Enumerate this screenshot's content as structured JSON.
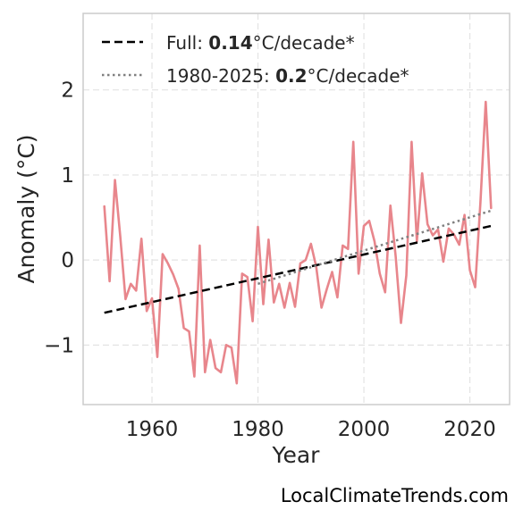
{
  "chart_data": {
    "type": "line",
    "xlabel": "Year",
    "ylabel": "Anomaly (°C)",
    "xlim": [
      1947,
      2027.5
    ],
    "ylim": [
      -1.7,
      2.9
    ],
    "xticks": [
      1960,
      1980,
      2000,
      2020
    ],
    "xtick_labels": [
      "1960",
      "1980",
      "2000",
      "2020"
    ],
    "yticks": [
      -1,
      0,
      1,
      2
    ],
    "ytick_labels": [
      "−1",
      "0",
      "1",
      "2"
    ],
    "grid": true,
    "legend_position": "top-left",
    "series": [
      {
        "style": "solid",
        "color": "#e8868c",
        "x": [
          1951,
          1952,
          1953,
          1954,
          1955,
          1956,
          1957,
          1958,
          1959,
          1960,
          1961,
          1962,
          1963,
          1964,
          1965,
          1966,
          1967,
          1968,
          1969,
          1970,
          1971,
          1972,
          1973,
          1974,
          1975,
          1976,
          1977,
          1978,
          1979,
          1980,
          1981,
          1982,
          1983,
          1984,
          1985,
          1986,
          1987,
          1988,
          1989,
          1990,
          1991,
          1992,
          1993,
          1994,
          1995,
          1996,
          1997,
          1998,
          1999,
          2000,
          2001,
          2002,
          2003,
          2004,
          2005,
          2006,
          2007,
          2008,
          2009,
          2010,
          2011,
          2012,
          2013,
          2014,
          2015,
          2016,
          2017,
          2018,
          2019,
          2020,
          2021,
          2022,
          2023,
          2024
        ],
        "y": [
          0.63,
          -0.25,
          0.94,
          0.28,
          -0.46,
          -0.28,
          -0.36,
          0.25,
          -0.6,
          -0.45,
          -1.14,
          0.07,
          -0.04,
          -0.17,
          -0.34,
          -0.8,
          -0.84,
          -1.37,
          0.17,
          -1.32,
          -0.94,
          -1.27,
          -1.32,
          -1.0,
          -1.03,
          -1.45,
          -0.16,
          -0.2,
          -0.72,
          0.39,
          -0.52,
          0.24,
          -0.5,
          -0.28,
          -0.56,
          -0.27,
          -0.55,
          -0.04,
          0.0,
          0.19,
          -0.08,
          -0.56,
          -0.34,
          -0.14,
          -0.44,
          0.17,
          0.13,
          1.39,
          -0.16,
          0.4,
          0.46,
          0.22,
          -0.16,
          -0.38,
          0.64,
          0.04,
          -0.74,
          -0.18,
          1.39,
          0.22,
          1.02,
          0.42,
          0.29,
          0.36,
          -0.02,
          0.37,
          0.3,
          0.18,
          0.53,
          -0.12,
          -0.32,
          0.68,
          1.86,
          0.61
        ]
      },
      {
        "name": "Full: ",
        "style": "dashed",
        "color": "#000000",
        "x": [
          1951,
          2024
        ],
        "y": [
          -0.62,
          0.4
        ]
      },
      {
        "name": "1980-2025: ",
        "style": "dotted",
        "color": "#808080",
        "x": [
          1980,
          2024
        ],
        "y": [
          -0.28,
          0.58
        ]
      }
    ],
    "legend": [
      {
        "prefix": "Full: ",
        "bold": "0.14",
        "suffix": "°C/decade*",
        "style": "dashed",
        "color": "#000000"
      },
      {
        "prefix": "1980-2025: ",
        "bold": "0.2",
        "suffix": "°C/decade*",
        "style": "dotted",
        "color": "#808080"
      }
    ]
  },
  "watermark": "LocalClimateTrends.com"
}
